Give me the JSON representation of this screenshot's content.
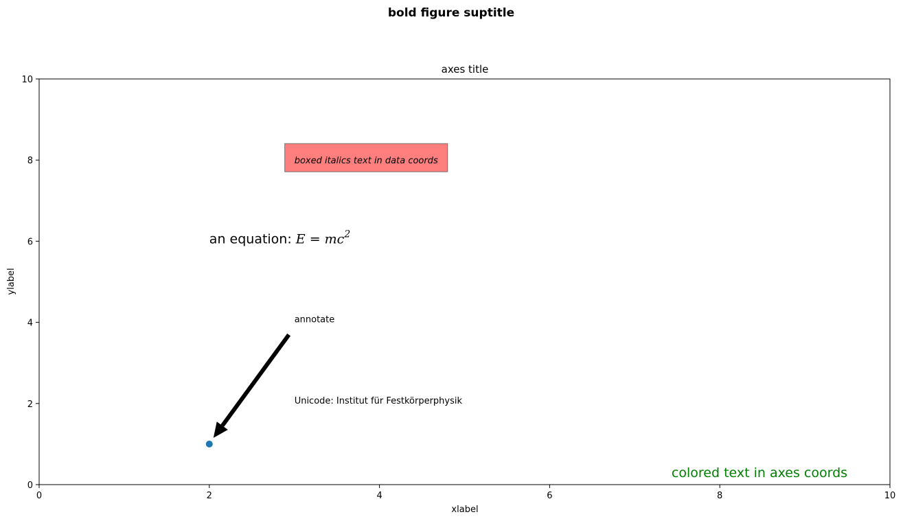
{
  "figure": {
    "suptitle": "bold figure suptitle"
  },
  "chart_data": {
    "type": "scatter",
    "title": "axes title",
    "xlabel": "xlabel",
    "ylabel": "ylabel",
    "xlim": [
      0,
      10
    ],
    "ylim": [
      0,
      10
    ],
    "xticks": [
      0,
      2,
      4,
      6,
      8,
      10
    ],
    "yticks": [
      0,
      2,
      4,
      6,
      8,
      10
    ],
    "xtick_labels": [
      "0",
      "2",
      "4",
      "6",
      "8",
      "10"
    ],
    "ytick_labels": [
      "0",
      "2",
      "4",
      "6",
      "8",
      "10"
    ],
    "grid": false,
    "points": [
      {
        "x": 2,
        "y": 1
      }
    ],
    "point_color": "#1f77b4",
    "annotations": [
      {
        "kind": "boxed",
        "text": "boxed italics text in data coords",
        "x": 3,
        "y": 8,
        "box_color": "#ff7f7f"
      },
      {
        "kind": "equation",
        "text": "an equation: ",
        "math_base": "E = mc",
        "math_sup": "2",
        "x": 2,
        "y": 6
      },
      {
        "kind": "arrow",
        "text": "annotate",
        "x": 3,
        "y": 4,
        "xy": [
          2,
          1
        ]
      },
      {
        "kind": "plain",
        "text": "Unicode: Institut für Festkörperphysik",
        "x": 3,
        "y": 2
      },
      {
        "kind": "axes",
        "text": "colored text in axes coords",
        "color": "#008000"
      }
    ]
  }
}
